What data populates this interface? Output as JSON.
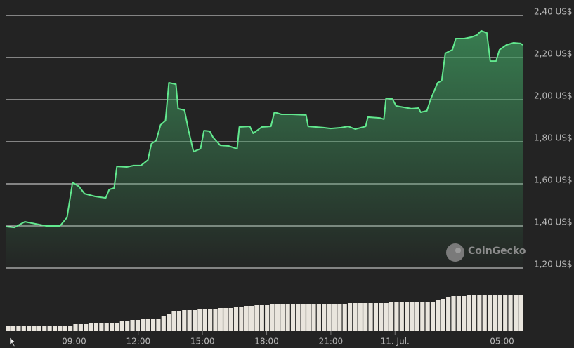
{
  "chart_data": [
    {
      "type": "line",
      "x": [
        5.8,
        6.21,
        6.7,
        7.19,
        7.69,
        8.34,
        8.67,
        8.93,
        9.23,
        9.49,
        9.99,
        10.48,
        10.64,
        10.87,
        11.0,
        11.46,
        11.79,
        12.12,
        12.45,
        12.61,
        12.84,
        13.04,
        13.27,
        13.43,
        13.76,
        13.86,
        14.16,
        14.35,
        14.58,
        14.91,
        15.07,
        15.34,
        15.5,
        15.83,
        16.22,
        16.62,
        16.72,
        17.21,
        17.37,
        17.77,
        18.2,
        18.36,
        18.69,
        19.18,
        19.84,
        19.94,
        20.66,
        20.99,
        21.48,
        21.81,
        22.14,
        22.63,
        22.73,
        23.29,
        23.48,
        23.58,
        23.88,
        24.05,
        24.44,
        24.77,
        25.1,
        25.2,
        25.49,
        25.66,
        25.99,
        26.18,
        26.35,
        26.68,
        26.84,
        27.24,
        27.57,
        27.83,
        28.03,
        28.29,
        28.45,
        28.72,
        28.88,
        29.21,
        29.54,
        29.87,
        29.97
      ],
      "values": [
        1.397,
        1.393,
        1.42,
        1.41,
        1.4,
        1.4,
        1.44,
        1.607,
        1.587,
        1.553,
        1.54,
        1.533,
        1.573,
        1.58,
        1.683,
        1.68,
        1.687,
        1.687,
        1.713,
        1.79,
        1.807,
        1.88,
        1.9,
        2.08,
        2.073,
        1.957,
        1.95,
        1.853,
        1.753,
        1.767,
        1.853,
        1.85,
        1.82,
        1.783,
        1.78,
        1.767,
        1.87,
        1.873,
        1.84,
        1.87,
        1.873,
        1.94,
        1.93,
        1.93,
        1.927,
        1.873,
        1.867,
        1.863,
        1.867,
        1.873,
        1.86,
        1.873,
        1.917,
        1.913,
        1.907,
        2.007,
        2.003,
        1.97,
        1.963,
        1.957,
        1.96,
        1.94,
        1.947,
        2.0,
        2.08,
        2.09,
        2.22,
        2.237,
        2.29,
        2.29,
        2.297,
        2.307,
        2.327,
        2.317,
        2.183,
        2.183,
        2.237,
        2.26,
        2.27,
        2.267,
        2.26
      ],
      "color": "#62e88e",
      "xlim": [
        5.8,
        30
      ],
      "xticks": [
        {
          "value": 9,
          "label": "09:00"
        },
        {
          "value": 12,
          "label": "12:00"
        },
        {
          "value": 15,
          "label": "15:00"
        },
        {
          "value": 18,
          "label": "18:00"
        },
        {
          "value": 21,
          "label": "21:00"
        },
        {
          "value": 24,
          "label": "11. Jul."
        },
        {
          "value": 29,
          "label": "05:00"
        }
      ],
      "ylim": [
        1.2,
        2.4
      ],
      "yticks": [
        {
          "value": 2.4,
          "label": "2,40 US$"
        },
        {
          "value": 2.2,
          "label": "2,20 US$"
        },
        {
          "value": 2.0,
          "label": "2,00 US$"
        },
        {
          "value": 1.8,
          "label": "1,80 US$"
        },
        {
          "value": 1.6,
          "label": "1,60 US$"
        },
        {
          "value": 1.4,
          "label": "1,40 US$"
        },
        {
          "value": 1.2,
          "label": "1,20 US$"
        }
      ],
      "grid": true,
      "watermark": "CoinGecko"
    },
    {
      "type": "bar",
      "values": [
        7,
        7,
        7,
        7,
        7,
        7,
        7,
        7,
        7,
        7,
        7,
        7,
        7,
        10,
        10,
        10,
        11,
        11,
        11,
        11,
        11,
        12,
        14,
        15,
        16,
        16,
        17,
        17,
        18,
        18,
        22,
        24,
        29,
        29,
        30,
        30,
        30,
        31,
        31,
        32,
        32,
        33,
        33,
        33,
        34,
        34,
        36,
        36,
        37,
        37,
        37,
        38,
        38,
        38,
        38,
        38,
        39,
        39,
        39,
        39,
        39,
        39,
        39,
        39,
        39,
        39,
        40,
        40,
        40,
        40,
        40,
        40,
        40,
        40,
        41,
        41,
        41,
        41,
        41,
        41,
        41,
        41,
        42,
        44,
        46,
        48,
        50,
        50,
        50,
        51,
        51,
        51,
        52,
        52,
        51,
        51,
        51,
        52,
        52,
        51
      ],
      "color": "#e9e5dd"
    }
  ]
}
